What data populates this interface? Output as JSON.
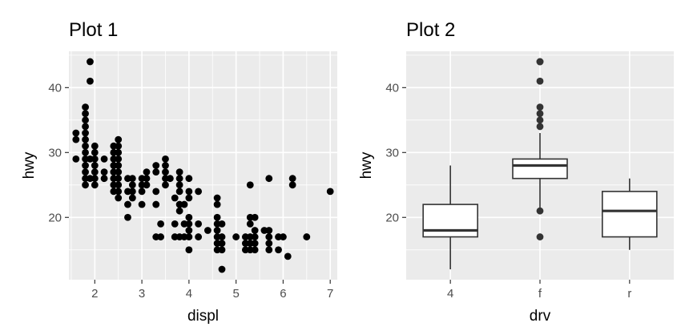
{
  "chart_data": [
    {
      "type": "scatter",
      "title": "Plot 1",
      "xlabel": "displ",
      "ylabel": "hwy",
      "xlim": [
        1.45,
        7.15
      ],
      "ylim": [
        10.4,
        45.6
      ],
      "x_ticks": [
        2,
        3,
        4,
        5,
        6,
        7
      ],
      "y_ticks": [
        20,
        30,
        40
      ],
      "grid": true,
      "points": [
        [
          1.6,
          33
        ],
        [
          1.6,
          32
        ],
        [
          1.6,
          29
        ],
        [
          1.8,
          29
        ],
        [
          1.8,
          26
        ],
        [
          1.8,
          25
        ],
        [
          1.8,
          27
        ],
        [
          1.8,
          28
        ],
        [
          1.8,
          30
        ],
        [
          1.8,
          31
        ],
        [
          1.8,
          32
        ],
        [
          1.8,
          33
        ],
        [
          1.8,
          34
        ],
        [
          1.8,
          35
        ],
        [
          1.8,
          36
        ],
        [
          1.8,
          37
        ],
        [
          1.9,
          44
        ],
        [
          1.9,
          41
        ],
        [
          1.9,
          29
        ],
        [
          1.9,
          26
        ],
        [
          2.0,
          31
        ],
        [
          2.0,
          30
        ],
        [
          2.0,
          29
        ],
        [
          2.0,
          28
        ],
        [
          2.0,
          27
        ],
        [
          2.0,
          26
        ],
        [
          2.0,
          25
        ],
        [
          2.2,
          29
        ],
        [
          2.2,
          27
        ],
        [
          2.2,
          26
        ],
        [
          2.4,
          31
        ],
        [
          2.4,
          30
        ],
        [
          2.4,
          29
        ],
        [
          2.4,
          28
        ],
        [
          2.4,
          27
        ],
        [
          2.4,
          26
        ],
        [
          2.4,
          25
        ],
        [
          2.4,
          24
        ],
        [
          2.5,
          32
        ],
        [
          2.5,
          31
        ],
        [
          2.5,
          30
        ],
        [
          2.5,
          29
        ],
        [
          2.5,
          28
        ],
        [
          2.5,
          27
        ],
        [
          2.5,
          26
        ],
        [
          2.5,
          25
        ],
        [
          2.5,
          24
        ],
        [
          2.5,
          23
        ],
        [
          2.7,
          26
        ],
        [
          2.7,
          24
        ],
        [
          2.7,
          22
        ],
        [
          2.7,
          20
        ],
        [
          2.8,
          26
        ],
        [
          2.8,
          25
        ],
        [
          2.8,
          24
        ],
        [
          2.8,
          23
        ],
        [
          3.0,
          26
        ],
        [
          3.0,
          25
        ],
        [
          3.0,
          24
        ],
        [
          3.0,
          22
        ],
        [
          3.1,
          27
        ],
        [
          3.1,
          26
        ],
        [
          3.1,
          25
        ],
        [
          3.3,
          28
        ],
        [
          3.3,
          27
        ],
        [
          3.3,
          24
        ],
        [
          3.3,
          22
        ],
        [
          3.3,
          17
        ],
        [
          3.4,
          19
        ],
        [
          3.4,
          17
        ],
        [
          3.5,
          29
        ],
        [
          3.5,
          28
        ],
        [
          3.5,
          27
        ],
        [
          3.5,
          26
        ],
        [
          3.5,
          25
        ],
        [
          3.6,
          26
        ],
        [
          3.7,
          23
        ],
        [
          3.7,
          19
        ],
        [
          3.7,
          17
        ],
        [
          3.8,
          27
        ],
        [
          3.8,
          26
        ],
        [
          3.8,
          25
        ],
        [
          3.8,
          24
        ],
        [
          3.8,
          22
        ],
        [
          3.8,
          21
        ],
        [
          3.8,
          17
        ],
        [
          3.9,
          22
        ],
        [
          3.9,
          19
        ],
        [
          3.9,
          17
        ],
        [
          4.0,
          26
        ],
        [
          4.0,
          24
        ],
        [
          4.0,
          23
        ],
        [
          4.0,
          20
        ],
        [
          4.0,
          19
        ],
        [
          4.0,
          18
        ],
        [
          4.0,
          17
        ],
        [
          4.0,
          15
        ],
        [
          4.2,
          24
        ],
        [
          4.2,
          19
        ],
        [
          4.2,
          17
        ],
        [
          4.4,
          18
        ],
        [
          4.6,
          23
        ],
        [
          4.6,
          22
        ],
        [
          4.6,
          20
        ],
        [
          4.6,
          19
        ],
        [
          4.6,
          18
        ],
        [
          4.6,
          17
        ],
        [
          4.6,
          16
        ],
        [
          4.6,
          15
        ],
        [
          4.7,
          19
        ],
        [
          4.7,
          17
        ],
        [
          4.7,
          16
        ],
        [
          4.7,
          15
        ],
        [
          4.7,
          12
        ],
        [
          5.0,
          17
        ],
        [
          5.2,
          17
        ],
        [
          5.2,
          16
        ],
        [
          5.2,
          15
        ],
        [
          5.3,
          25
        ],
        [
          5.3,
          20
        ],
        [
          5.3,
          19
        ],
        [
          5.3,
          17
        ],
        [
          5.3,
          16
        ],
        [
          5.3,
          15
        ],
        [
          5.4,
          20
        ],
        [
          5.4,
          18
        ],
        [
          5.4,
          17
        ],
        [
          5.4,
          16
        ],
        [
          5.4,
          15
        ],
        [
          5.6,
          18
        ],
        [
          5.7,
          26
        ],
        [
          5.7,
          18
        ],
        [
          5.7,
          17
        ],
        [
          5.7,
          16
        ],
        [
          5.7,
          15
        ],
        [
          5.9,
          17
        ],
        [
          5.9,
          15
        ],
        [
          6.0,
          17
        ],
        [
          6.1,
          14
        ],
        [
          6.2,
          26
        ],
        [
          6.2,
          25
        ],
        [
          6.5,
          17
        ],
        [
          7.0,
          24
        ]
      ]
    },
    {
      "type": "box",
      "title": "Plot 2",
      "xlabel": "drv",
      "ylabel": "hwy",
      "ylim": [
        10.4,
        45.6
      ],
      "y_ticks": [
        20,
        30,
        40
      ],
      "categories": [
        "4",
        "f",
        "r"
      ],
      "boxes": [
        {
          "category": "4",
          "min": 12,
          "q1": 17,
          "median": 18,
          "q3": 22,
          "max": 28,
          "outliers": []
        },
        {
          "category": "f",
          "min": 21,
          "q1": 26,
          "median": 28,
          "q3": 29,
          "max": 33,
          "outliers": [
            44,
            44,
            41,
            37,
            36,
            35,
            34,
            21,
            17
          ]
        },
        {
          "category": "r",
          "min": 15,
          "q1": 17,
          "median": 21,
          "q3": 24,
          "max": 26,
          "outliers": []
        }
      ]
    }
  ]
}
